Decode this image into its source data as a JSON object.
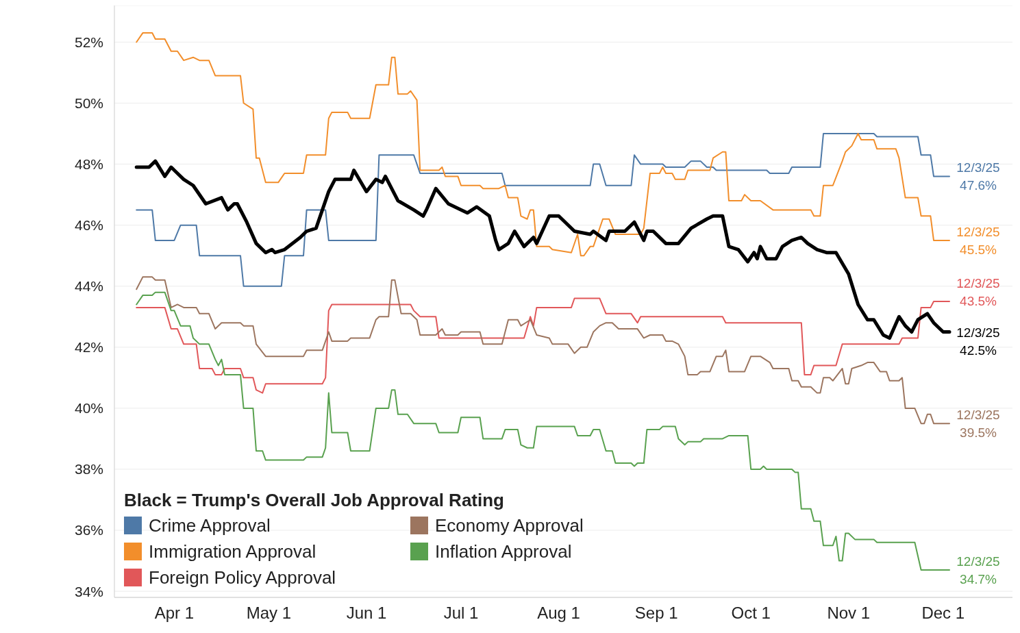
{
  "chart_data": {
    "type": "line",
    "legend_title": "Black = Trump's Overall Job Approval Rating",
    "legend": "bottom left",
    "grid": "y",
    "xlim": [
      "--03-13",
      "--12-23"
    ],
    "xticks": [
      {
        "value": "--04-01",
        "label": "Apr 1"
      },
      {
        "value": "--05-01",
        "label": "May 1"
      },
      {
        "value": "--06-01",
        "label": "Jun 1"
      },
      {
        "value": "--07-01",
        "label": "Jul 1"
      },
      {
        "value": "--08-01",
        "label": "Aug 1"
      },
      {
        "value": "--09-01",
        "label": "Sep 1"
      },
      {
        "value": "--10-01",
        "label": "Oct 1"
      },
      {
        "value": "--11-01",
        "label": "Nov 1"
      },
      {
        "value": "--12-01",
        "label": "Dec 1"
      }
    ],
    "ylim": [
      33.8,
      53.2
    ],
    "yticks": [
      {
        "value": 34,
        "label": "34%"
      },
      {
        "value": 36,
        "label": "36%"
      },
      {
        "value": 38,
        "label": "38%"
      },
      {
        "value": 40,
        "label": "40%"
      },
      {
        "value": 42,
        "label": "42%"
      },
      {
        "value": 44,
        "label": "44%"
      },
      {
        "value": 46,
        "label": "46%"
      },
      {
        "value": 48,
        "label": "48%"
      },
      {
        "value": 50,
        "label": "50%"
      },
      {
        "value": 52,
        "label": "52%"
      }
    ],
    "series": [
      {
        "name": "Crime Approval",
        "color": "#4e79a7",
        "x": [
          "--03-20",
          "--03-25",
          "--03-26",
          "--04-01",
          "--04-03",
          "--04-08",
          "--04-09",
          "--04-22",
          "--04-23",
          "--05-05",
          "--05-06",
          "--05-12",
          "--05-13",
          "--05-19",
          "--05-20",
          "--06-04",
          "--06-05",
          "--06-16",
          "--06-18",
          "--07-14",
          "--07-15",
          "--08-11",
          "--08-12",
          "--08-14",
          "--08-16",
          "--08-24",
          "--08-25",
          "--08-27",
          "--09-03",
          "--09-04",
          "--09-10",
          "--09-12",
          "--09-15",
          "--09-17",
          "--09-19",
          "--09-20",
          "--10-06",
          "--10-07",
          "--10-13",
          "--10-14",
          "--10-23",
          "--10-24",
          "--11-09",
          "--11-10",
          "--11-23",
          "--11-24",
          "--11-27",
          "--11-28",
          "--12-03"
        ],
        "values": [
          46.5,
          46.5,
          45.5,
          45.5,
          46.0,
          46.0,
          45.0,
          45.0,
          44.0,
          44.0,
          45.0,
          45.0,
          46.5,
          46.5,
          45.5,
          45.5,
          48.3,
          48.3,
          47.7,
          47.7,
          47.3,
          47.3,
          48.0,
          48.0,
          47.3,
          47.3,
          48.3,
          48.0,
          48.0,
          47.9,
          47.9,
          48.1,
          48.1,
          47.9,
          47.9,
          47.8,
          47.8,
          47.7,
          47.7,
          47.9,
          47.9,
          49.0,
          49.0,
          48.9,
          48.9,
          48.3,
          48.3,
          47.6,
          47.6
        ]
      },
      {
        "name": "Immigration Approval",
        "color": "#f28e2b",
        "x": [
          "--03-20",
          "--03-22",
          "--03-25",
          "--03-26",
          "--03-29",
          "--03-31",
          "--04-02",
          "--04-04",
          "--04-07",
          "--04-09",
          "--04-12",
          "--04-14",
          "--04-22",
          "--04-23",
          "--04-26",
          "--04-27",
          "--04-28",
          "--04-30",
          "--05-04",
          "--05-06",
          "--05-12",
          "--05-13",
          "--05-19",
          "--05-20",
          "--05-21",
          "--05-26",
          "--05-27",
          "--06-02",
          "--06-04",
          "--06-08",
          "--06-09",
          "--06-10",
          "--06-11",
          "--06-14",
          "--06-15",
          "--06-17",
          "--06-18",
          "--06-24",
          "--06-25",
          "--06-26",
          "--06-30",
          "--07-01",
          "--07-07",
          "--07-08",
          "--07-13",
          "--07-15",
          "--07-16",
          "--07-19",
          "--07-20",
          "--07-22",
          "--07-23",
          "--07-24",
          "--07-25",
          "--07-29",
          "--07-30",
          "--08-05",
          "--08-07",
          "--08-08",
          "--08-09",
          "--08-11",
          "--08-12",
          "--08-15",
          "--08-17",
          "--08-19",
          "--08-27",
          "--08-28",
          "--08-30",
          "--09-02",
          "--09-03",
          "--09-04",
          "--09-06",
          "--09-07",
          "--09-10",
          "--09-11",
          "--09-18",
          "--09-19",
          "--09-22",
          "--09-23",
          "--09-24",
          "--09-28",
          "--09-29",
          "--10-01",
          "--10-04",
          "--10-08",
          "--10-20",
          "--10-21",
          "--10-23",
          "--10-24",
          "--10-27",
          "--10-30",
          "--10-31",
          "--11-02",
          "--11-04",
          "--11-05",
          "--11-09",
          "--11-10",
          "--11-16",
          "--11-17",
          "--11-19",
          "--11-23",
          "--11-24",
          "--11-27",
          "--11-28",
          "--12-03"
        ],
        "values": [
          52.0,
          52.3,
          52.3,
          52.1,
          52.1,
          51.7,
          51.7,
          51.4,
          51.5,
          51.4,
          51.4,
          50.9,
          50.9,
          50.0,
          49.8,
          48.2,
          48.2,
          47.4,
          47.4,
          47.7,
          47.7,
          48.3,
          48.3,
          49.5,
          49.7,
          49.7,
          49.5,
          49.5,
          50.6,
          50.6,
          51.5,
          51.5,
          50.3,
          50.3,
          50.4,
          50.1,
          47.8,
          47.8,
          47.9,
          47.6,
          47.6,
          47.3,
          47.3,
          47.2,
          47.2,
          47.3,
          46.9,
          46.9,
          46.3,
          46.2,
          46.5,
          46.5,
          45.3,
          45.3,
          45.2,
          45.1,
          45.7,
          45.0,
          45.0,
          45.3,
          45.3,
          46.2,
          46.2,
          45.7,
          45.7,
          45.9,
          47.7,
          47.7,
          47.9,
          47.7,
          47.7,
          47.5,
          47.5,
          47.8,
          47.8,
          48.2,
          48.4,
          48.4,
          46.8,
          46.8,
          47.0,
          46.8,
          46.8,
          46.5,
          46.5,
          46.3,
          46.3,
          47.3,
          47.3,
          48.1,
          48.4,
          48.6,
          49.0,
          48.8,
          48.8,
          48.5,
          48.5,
          48.2,
          46.9,
          46.9,
          46.3,
          46.3,
          45.5,
          45.5
        ]
      },
      {
        "name": "Foreign Policy Approval",
        "color": "#e15759",
        "x": [
          "--03-20",
          "--03-29",
          "--03-31",
          "--04-02",
          "--04-04",
          "--04-08",
          "--04-09",
          "--04-13",
          "--04-14",
          "--04-16",
          "--04-17",
          "--04-22",
          "--04-23",
          "--04-26",
          "--04-27",
          "--04-29",
          "--04-30",
          "--05-18",
          "--05-19",
          "--05-20",
          "--05-21",
          "--06-15",
          "--06-16",
          "--06-18",
          "--06-23",
          "--06-24",
          "--07-21",
          "--07-23",
          "--07-24",
          "--07-25",
          "--08-05",
          "--08-06",
          "--08-14",
          "--08-16",
          "--08-24",
          "--08-26",
          "--08-27",
          "--09-22",
          "--09-23",
          "--10-17",
          "--10-18",
          "--10-20",
          "--10-21",
          "--10-28",
          "--10-30",
          "--11-17",
          "--11-18",
          "--11-23",
          "--11-24",
          "--11-27",
          "--11-28",
          "--12-03"
        ],
        "values": [
          43.3,
          43.3,
          42.6,
          42.6,
          42.1,
          42.1,
          41.3,
          41.3,
          41.1,
          41.1,
          41.3,
          41.3,
          41.0,
          41.0,
          40.6,
          40.5,
          40.8,
          40.8,
          41.0,
          43.2,
          43.4,
          43.4,
          43.2,
          43.0,
          43.0,
          42.3,
          42.3,
          43.0,
          42.7,
          43.3,
          43.3,
          43.6,
          43.6,
          43.1,
          43.1,
          42.8,
          43.0,
          43.0,
          42.8,
          42.8,
          41.1,
          41.1,
          41.4,
          41.4,
          42.1,
          42.1,
          42.3,
          42.3,
          43.3,
          43.3,
          43.5,
          43.5
        ]
      },
      {
        "name": "Economy Approval",
        "color": "#9c755f",
        "x": [
          "--03-20",
          "--03-22",
          "--03-25",
          "--03-26",
          "--03-29",
          "--03-31",
          "--04-02",
          "--04-04",
          "--04-08",
          "--04-09",
          "--04-12",
          "--04-14",
          "--04-16",
          "--04-22",
          "--04-23",
          "--04-26",
          "--04-27",
          "--04-30",
          "--05-12",
          "--05-13",
          "--05-18",
          "--05-20",
          "--05-21",
          "--05-26",
          "--05-27",
          "--06-02",
          "--06-04",
          "--06-05",
          "--06-08",
          "--06-09",
          "--06-10",
          "--06-12",
          "--06-15",
          "--06-17",
          "--06-18",
          "--06-23",
          "--06-25",
          "--06-26",
          "--06-30",
          "--07-01",
          "--07-07",
          "--07-08",
          "--07-14",
          "--07-16",
          "--07-19",
          "--07-20",
          "--07-23",
          "--07-25",
          "--07-29",
          "--07-30",
          "--08-04",
          "--08-06",
          "--08-08",
          "--08-10",
          "--08-12",
          "--08-14",
          "--08-16",
          "--08-18",
          "--08-20",
          "--08-26",
          "--08-28",
          "--08-30",
          "--09-03",
          "--09-04",
          "--09-06",
          "--09-08",
          "--09-10",
          "--09-11",
          "--09-14",
          "--09-15",
          "--09-18",
          "--09-20",
          "--09-22",
          "--09-23",
          "--09-24",
          "--09-29",
          "--10-01",
          "--10-04",
          "--10-07",
          "--10-08",
          "--10-13",
          "--10-14",
          "--10-16",
          "--10-17",
          "--10-20",
          "--10-22",
          "--10-23",
          "--10-24",
          "--10-26",
          "--10-27",
          "--10-30",
          "--10-31",
          "--11-01",
          "--11-02",
          "--11-05",
          "--11-07",
          "--11-09",
          "--11-11",
          "--11-13",
          "--11-14",
          "--11-17",
          "--11-18",
          "--11-19",
          "--11-22",
          "--11-24",
          "--11-25",
          "--11-26",
          "--11-27",
          "--11-28",
          "--12-03"
        ],
        "values": [
          43.9,
          44.3,
          44.3,
          44.2,
          44.2,
          43.3,
          43.4,
          43.3,
          43.3,
          43.1,
          43.1,
          42.6,
          42.8,
          42.8,
          42.7,
          42.7,
          42.1,
          41.7,
          41.7,
          41.9,
          41.9,
          42.5,
          42.2,
          42.2,
          42.3,
          42.3,
          42.9,
          43.0,
          43.0,
          44.2,
          44.2,
          43.1,
          43.1,
          42.9,
          42.4,
          42.4,
          42.6,
          42.4,
          42.4,
          42.5,
          42.5,
          42.1,
          42.1,
          42.9,
          42.9,
          42.7,
          42.9,
          42.4,
          42.3,
          42.1,
          42.1,
          41.8,
          42.0,
          42.0,
          42.5,
          42.7,
          42.8,
          42.8,
          42.6,
          42.6,
          42.3,
          42.4,
          42.4,
          42.2,
          42.2,
          42.1,
          41.7,
          41.1,
          41.1,
          41.2,
          41.2,
          41.7,
          41.7,
          41.9,
          41.2,
          41.2,
          41.7,
          41.7,
          41.5,
          41.3,
          41.3,
          40.9,
          40.9,
          40.7,
          40.7,
          40.5,
          40.5,
          41.0,
          41.0,
          40.9,
          41.3,
          40.8,
          40.8,
          41.3,
          41.4,
          41.5,
          41.5,
          41.2,
          41.2,
          40.9,
          40.9,
          41.0,
          40.0,
          40.0,
          39.5,
          39.5,
          39.8,
          39.8,
          39.5,
          39.5
        ]
      },
      {
        "name": "Inflation Approval",
        "color": "#59a14f",
        "x": [
          "--03-20",
          "--03-22",
          "--03-25",
          "--03-26",
          "--03-29",
          "--03-31",
          "--04-01",
          "--04-03",
          "--04-06",
          "--04-07",
          "--04-09",
          "--04-12",
          "--04-14",
          "--04-15",
          "--04-16",
          "--04-17",
          "--04-22",
          "--04-23",
          "--04-26",
          "--04-27",
          "--04-29",
          "--04-30",
          "--05-12",
          "--05-13",
          "--05-18",
          "--05-19",
          "--05-20",
          "--05-21",
          "--05-26",
          "--05-27",
          "--06-02",
          "--06-04",
          "--06-08",
          "--06-09",
          "--06-10",
          "--06-11",
          "--06-14",
          "--06-16",
          "--06-23",
          "--06-24",
          "--06-30",
          "--07-01",
          "--07-07",
          "--07-08",
          "--07-14",
          "--07-15",
          "--07-19",
          "--07-20",
          "--07-22",
          "--07-24",
          "--07-25",
          "--08-06",
          "--08-07",
          "--08-11",
          "--08-12",
          "--08-14",
          "--08-16",
          "--08-18",
          "--08-19",
          "--08-24",
          "--08-25",
          "--08-26",
          "--08-28",
          "--08-29",
          "--09-02",
          "--09-03",
          "--09-07",
          "--09-08",
          "--09-10",
          "--09-11",
          "--09-15",
          "--09-16",
          "--09-22",
          "--09-24",
          "--09-30",
          "--10-01",
          "--10-04",
          "--10-05",
          "--10-06",
          "--10-14",
          "--10-15",
          "--10-16",
          "--10-17",
          "--10-20",
          "--10-21",
          "--10-23",
          "--10-24",
          "--10-27",
          "--10-28",
          "--10-29",
          "--10-30",
          "--10-31",
          "--11-01",
          "--11-03",
          "--11-09",
          "--11-10",
          "--11-22",
          "--11-24",
          "--12-03"
        ],
        "values": [
          43.4,
          43.7,
          43.7,
          43.8,
          43.8,
          43.2,
          43.2,
          42.7,
          42.7,
          42.3,
          42.1,
          42.1,
          41.6,
          41.4,
          41.6,
          41.1,
          41.1,
          40.0,
          40.0,
          38.6,
          38.6,
          38.3,
          38.3,
          38.4,
          38.4,
          38.7,
          40.5,
          39.2,
          39.2,
          38.6,
          38.6,
          40.0,
          40.0,
          40.6,
          40.6,
          39.8,
          39.8,
          39.5,
          39.5,
          39.2,
          39.2,
          39.7,
          39.7,
          39.0,
          39.0,
          39.3,
          39.3,
          38.8,
          38.7,
          38.7,
          39.4,
          39.4,
          39.1,
          39.1,
          39.3,
          39.3,
          38.6,
          38.6,
          38.2,
          38.2,
          38.1,
          38.2,
          38.2,
          39.3,
          39.3,
          39.4,
          39.4,
          39.0,
          38.8,
          38.9,
          38.9,
          39.0,
          39.0,
          39.1,
          39.1,
          38.0,
          38.0,
          38.1,
          38.0,
          38.0,
          37.9,
          37.9,
          36.7,
          36.7,
          36.3,
          36.3,
          35.5,
          35.5,
          35.8,
          35.0,
          35.0,
          35.9,
          35.9,
          35.7,
          35.7,
          35.6,
          35.6,
          34.7,
          34.7
        ]
      },
      {
        "color": "#000000",
        "x": [
          "--03-20",
          "--03-24",
          "--03-26",
          "--03-29",
          "--03-31",
          "--04-04",
          "--04-07",
          "--04-11",
          "--04-16",
          "--04-18",
          "--04-20",
          "--04-21",
          "--04-24",
          "--04-27",
          "--04-30",
          "--05-02",
          "--05-03",
          "--05-06",
          "--05-11",
          "--05-13",
          "--05-16",
          "--05-18",
          "--05-20",
          "--05-22",
          "--05-27",
          "--05-28",
          "--06-01",
          "--06-04",
          "--06-06",
          "--06-07",
          "--06-11",
          "--06-16",
          "--06-19",
          "--06-20",
          "--06-23",
          "--06-27",
          "--07-03",
          "--07-06",
          "--07-10",
          "--07-12",
          "--07-13",
          "--07-16",
          "--07-18",
          "--07-21",
          "--07-24",
          "--07-25",
          "--07-29",
          "--08-01",
          "--08-06",
          "--08-11",
          "--08-12",
          "--08-16",
          "--08-17",
          "--08-22",
          "--08-25",
          "--08-28",
          "--08-29",
          "--08-31",
          "--09-04",
          "--09-08",
          "--09-12",
          "--09-17",
          "--09-19",
          "--09-22",
          "--09-24",
          "--09-27",
          "--09-30",
          "--10-02",
          "--10-03",
          "--10-04",
          "--10-06",
          "--10-09",
          "--10-11",
          "--10-14",
          "--10-17",
          "--10-19",
          "--10-22",
          "--10-25",
          "--10-28",
          "--11-01",
          "--11-04",
          "--11-07",
          "--11-09",
          "--11-12",
          "--11-14",
          "--11-17",
          "--11-19",
          "--11-21",
          "--11-23",
          "--11-26",
          "--11-28",
          "--12-01",
          "--12-03"
        ],
        "values": [
          47.9,
          47.9,
          48.1,
          47.6,
          47.9,
          47.5,
          47.3,
          46.7,
          46.9,
          46.5,
          46.7,
          46.7,
          46.1,
          45.4,
          45.1,
          45.2,
          45.1,
          45.2,
          45.6,
          45.8,
          45.9,
          46.5,
          47.1,
          47.5,
          47.5,
          47.8,
          47.1,
          47.5,
          47.4,
          47.6,
          46.8,
          46.5,
          46.3,
          46.5,
          47.2,
          46.7,
          46.4,
          46.6,
          46.3,
          45.5,
          45.2,
          45.4,
          45.8,
          45.3,
          45.6,
          45.4,
          46.3,
          46.3,
          45.8,
          45.7,
          45.8,
          45.5,
          45.8,
          45.8,
          46.1,
          45.5,
          45.8,
          45.8,
          45.4,
          45.4,
          45.9,
          46.2,
          46.3,
          46.3,
          45.3,
          45.2,
          44.8,
          45.1,
          44.9,
          45.3,
          44.9,
          44.9,
          45.3,
          45.5,
          45.6,
          45.4,
          45.2,
          45.1,
          45.1,
          44.4,
          43.4,
          42.9,
          42.9,
          42.4,
          42.3,
          43.0,
          42.7,
          42.5,
          42.9,
          43.1,
          42.8,
          42.5,
          42.5
        ]
      }
    ],
    "annotations": [
      {
        "text": "12/3/25\n47.6%",
        "x": "--12-03",
        "y": 47.6
      },
      {
        "text": "12/3/25\n45.5%",
        "x": "--12-03",
        "y": 45.5
      },
      {
        "text": "12/3/25\n43.5%",
        "x": "--12-03",
        "y": 43.5
      },
      {
        "text": "12/3/25\n42.5%",
        "x": "--12-03",
        "y": 42.5
      },
      {
        "text": "12/3/25\n39.5%",
        "x": "--12-03",
        "y": 39.5
      },
      {
        "text": "12/3/25\n34.7%",
        "x": "--12-03",
        "y": 34.7
      }
    ]
  }
}
